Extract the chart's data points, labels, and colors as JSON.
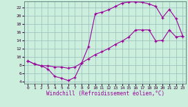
{
  "xlabel": "Windchill (Refroidissement éolien,°C)",
  "bg_color": "#cceedd",
  "line_color": "#990099",
  "grid_color": "#99bbbb",
  "spine_color": "#557777",
  "xlim": [
    -0.5,
    23.5
  ],
  "ylim": [
    3.5,
    23.5
  ],
  "xticks": [
    0,
    1,
    2,
    3,
    4,
    5,
    6,
    7,
    8,
    9,
    10,
    11,
    12,
    13,
    14,
    15,
    16,
    17,
    18,
    19,
    20,
    21,
    22,
    23
  ],
  "yticks": [
    4,
    6,
    8,
    10,
    12,
    14,
    16,
    18,
    20,
    22
  ],
  "line1_x": [
    0,
    1,
    2,
    3,
    4,
    5,
    6,
    7,
    8,
    9,
    10,
    11,
    12,
    13,
    14,
    15,
    16,
    17,
    18,
    19,
    20,
    21,
    22,
    23
  ],
  "line1_y": [
    9,
    8.2,
    7.8,
    7.0,
    5.2,
    4.8,
    4.2,
    5.0,
    8.5,
    12.5,
    20.4,
    20.8,
    21.4,
    22.2,
    23.0,
    23.3,
    23.3,
    23.2,
    22.8,
    22.2,
    19.5,
    21.5,
    19.2,
    15.0
  ],
  "line2_x": [
    0,
    1,
    2,
    3,
    4,
    5,
    6,
    7,
    8,
    9,
    10,
    11,
    12,
    13,
    14,
    15,
    16,
    17,
    18,
    19,
    20,
    21,
    22,
    23
  ],
  "line2_y": [
    9,
    8.2,
    7.8,
    7.8,
    7.5,
    7.5,
    7.2,
    7.5,
    8.5,
    9.5,
    10.5,
    11.2,
    12.0,
    13.0,
    13.8,
    14.8,
    16.5,
    16.5,
    16.5,
    13.8,
    14.0,
    16.5,
    14.8,
    15.0
  ]
}
